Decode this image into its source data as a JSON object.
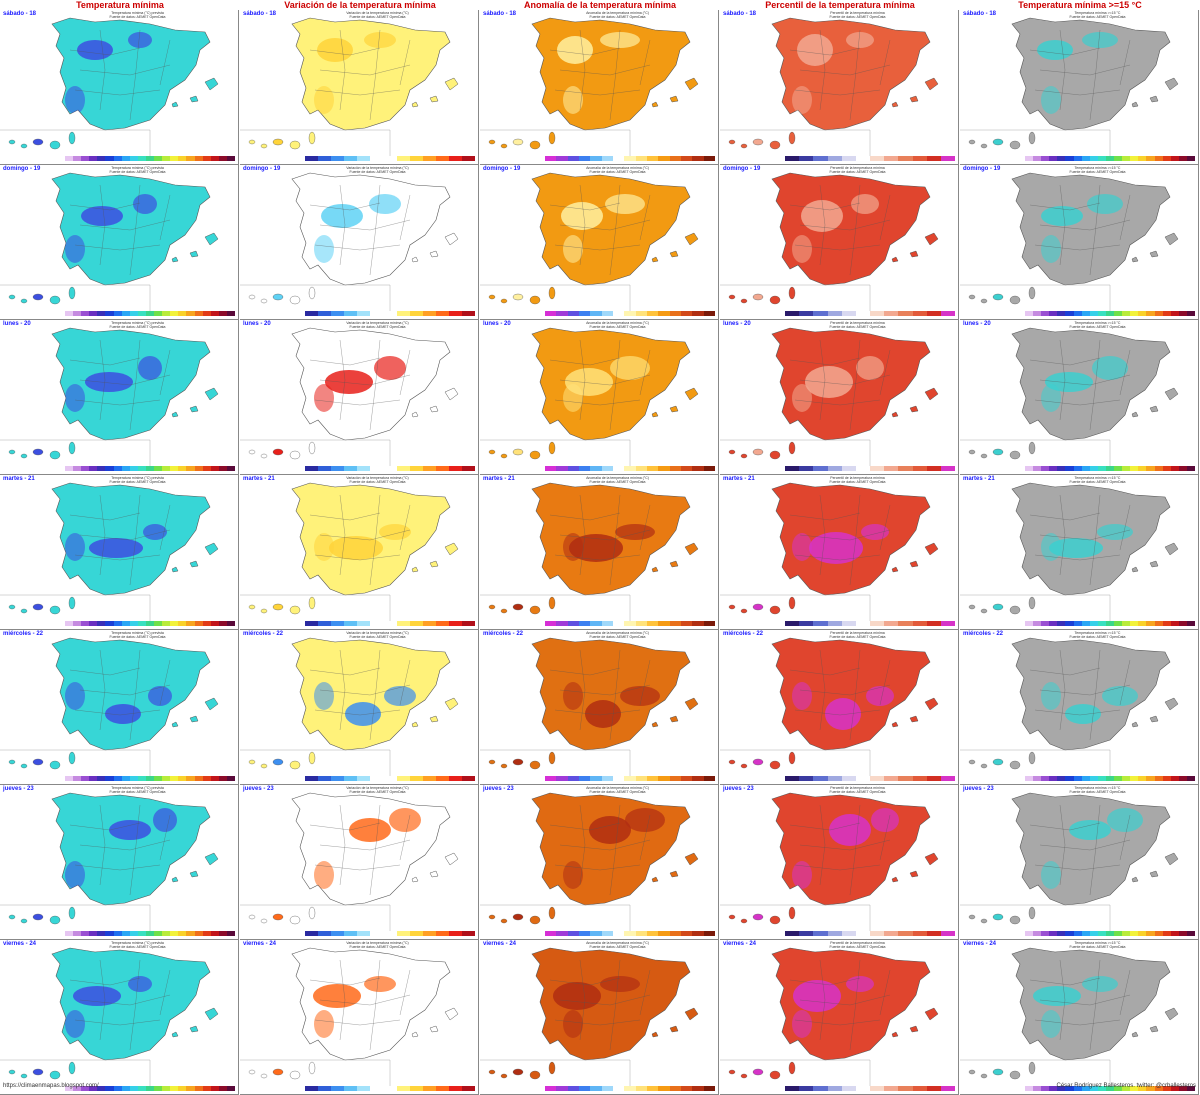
{
  "column_titles": [
    "Temperatura mínima",
    "Variación de la temperatura mínima",
    "Anomalía de la temperatura mínima",
    "Percentil de la temperatura mínima",
    "Temperatura mínima >=15 °C"
  ],
  "day_labels": [
    "sábado - 18",
    "domingo - 19",
    "lunes - 20",
    "martes - 21",
    "miércoles - 22",
    "jueves - 23",
    "viernes - 24"
  ],
  "panel_subtitles": [
    "Temperatura mínima (°C) prevista",
    "Variación de la temperatura mínima (°C)",
    "Anomalía de la temperatura mínima (°C)",
    "Percentil de la temperatura mínima",
    "Temperatura mínima >=15 °C"
  ],
  "source_note": "Fuente de datos: AEMET OpenData",
  "footer": {
    "left": "https://climaenmapas.blogspot.com/",
    "right": "César Rodríguez Ballesteros. twitter: @crballesteros"
  },
  "colors": {
    "header_red": "#cc0000",
    "day_label_blue": "#1a1aff",
    "land_outline": "#555555",
    "temp_base": "#37d6d6",
    "temp_cold": "#3c4fe0",
    "variation_warm": "#ffe23a",
    "variation_cold": "#5fd2f5",
    "anomaly_base": "#f29a12",
    "anomaly_high": "#c84a0a",
    "percentile_base": "#e8603c",
    "percentile_extreme": "#d633c8",
    "threshold_gray": "#a8a8a8",
    "threshold_teal": "#3ccfcf"
  },
  "colorbars": [
    [
      "#e6c6f2",
      "#c58ae0",
      "#9a4fd2",
      "#6a2fc0",
      "#3a2fb8",
      "#1b3fd6",
      "#1e6ff0",
      "#2aa6f5",
      "#35d0e8",
      "#38e0c0",
      "#3ad68a",
      "#6fe04a",
      "#b8ec3a",
      "#f2f23a",
      "#f9d22a",
      "#f7a51f",
      "#f0701a",
      "#e23b17",
      "#c2151b",
      "#8c0b2a",
      "#5a0a3a"
    ],
    [
      "#2a2aa0",
      "#2f5fd8",
      "#3d8ff0",
      "#5fc0f5",
      "#a3e2fa",
      "#ffffff",
      "#ffffff",
      "#fff27a",
      "#ffd43a",
      "#ffa024",
      "#ff6a1a",
      "#e8201a",
      "#b0101a"
    ],
    [
      "#d62fd6",
      "#a03ad8",
      "#5f4fe0",
      "#3c7ff0",
      "#5fb5f5",
      "#9fd8fa",
      "#ffffff",
      "#fff5b0",
      "#ffe27a",
      "#ffc23a",
      "#f59a12",
      "#e8701a",
      "#d2491a",
      "#b02e12",
      "#7a1a0a"
    ],
    [
      "#2a1a6a",
      "#3a3aa0",
      "#5f6fd0",
      "#9fa8e0",
      "#d8d8f0",
      "#ffffff",
      "#f8d8c8",
      "#f2a890",
      "#e8805a",
      "#e25a3a",
      "#d22e22",
      "#d633c8"
    ],
    [
      "#e6c6f2",
      "#c58ae0",
      "#9a4fd2",
      "#6a2fc0",
      "#3a2fb8",
      "#1b3fd6",
      "#1e6ff0",
      "#2aa6f5",
      "#35d0e8",
      "#38e0c0",
      "#3ad68a",
      "#6fe04a",
      "#b8ec3a",
      "#f2f23a",
      "#f9d22a",
      "#f7a51f",
      "#f0701a",
      "#e23b17",
      "#c2151b",
      "#8c0b2a",
      "#5a0a3a"
    ]
  ],
  "land_fill": [
    [
      "#37d6d6",
      "#fff27a",
      "#f29a12",
      "#e8603c",
      "#a8a8a8"
    ],
    [
      "#37d6d6",
      "#ffffff",
      "#f29a12",
      "#e0452e",
      "#a8a8a8"
    ],
    [
      "#37d6d6",
      "#ffffff",
      "#f29a12",
      "#e0452e",
      "#a8a8a8"
    ],
    [
      "#37d6d6",
      "#fff27a",
      "#e87a12",
      "#e0452e",
      "#a8a8a8"
    ],
    [
      "#37d6d6",
      "#fff27a",
      "#e07012",
      "#e0452e",
      "#a8a8a8"
    ],
    [
      "#37d6d6",
      "#ffffff",
      "#e06a12",
      "#e0452e",
      "#a8a8a8"
    ],
    [
      "#37d6d6",
      "#ffffff",
      "#d65a12",
      "#e0452e",
      "#a8a8a8"
    ]
  ],
  "blob_fill": [
    [
      "#3c4fe0",
      "#ffd43a",
      "#fff0a0",
      "#f2a890",
      "#3ccfcf"
    ],
    [
      "#3c4fe0",
      "#5fd2f5",
      "#fff0a0",
      "#f2a890",
      "#3ccfcf"
    ],
    [
      "#3c4fe0",
      "#e8201a",
      "#ffe27a",
      "#f2a890",
      "#3ccfcf"
    ],
    [
      "#3c4fe0",
      "#ffd43a",
      "#b02e12",
      "#d633c8",
      "#3ccfcf"
    ],
    [
      "#3c4fe0",
      "#3d8ff0",
      "#b02e12",
      "#d633c8",
      "#3ccfcf"
    ],
    [
      "#3c4fe0",
      "#ff6a1a",
      "#b02e12",
      "#d633c8",
      "#3ccfcf"
    ],
    [
      "#3c4fe0",
      "#ff6a1a",
      "#b02e12",
      "#d633c8",
      "#3ccfcf"
    ]
  ]
}
